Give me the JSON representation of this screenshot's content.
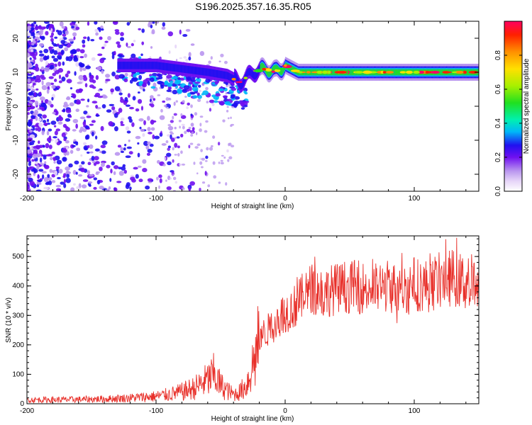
{
  "title": "S196.2025.357.16.35.R05",
  "chart_data": [
    {
      "type": "heatmap",
      "xlabel": "Height of straight line (km)",
      "ylabel": "Frequency (Hz)",
      "xlim": [
        -200,
        150
      ],
      "ylim": [
        -25,
        25
      ],
      "xticks": [
        -200,
        -100,
        0,
        100
      ],
      "xtick_labels": [
        "-200",
        "-100",
        "0",
        "100"
      ],
      "yticks": [
        -20,
        -10,
        0,
        10,
        20
      ],
      "ytick_labels": [
        "-20",
        "-10",
        "0",
        "10",
        "20"
      ],
      "ridge": {
        "description_points_x": [
          -130,
          -100,
          -80,
          -60,
          -45,
          -35,
          -25,
          -15,
          -8,
          0,
          10,
          20,
          40,
          60,
          80,
          100,
          120,
          150
        ],
        "description_points_y": [
          12,
          12,
          11,
          10,
          9,
          7,
          10,
          11,
          10,
          12,
          10,
          10,
          10,
          10,
          10,
          10,
          10,
          10
        ]
      },
      "colorbar": {
        "label": "Normalized spectral amplitude",
        "range": [
          0.0,
          1.0
        ],
        "ticks": [
          0.0,
          0.2,
          0.4,
          0.6,
          0.8
        ],
        "tick_labels": [
          "0.0",
          "0.2",
          "0.4",
          "0.6",
          "0.8"
        ]
      }
    },
    {
      "type": "line",
      "xlabel": "Height of straight line (km)",
      "ylabel": "SNR (10 * v/v)",
      "xlim": [
        -200,
        150
      ],
      "ylim": [
        0,
        570
      ],
      "xticks": [
        -200,
        -100,
        0,
        100
      ],
      "xtick_labels": [
        "-200",
        "-100",
        "0",
        "100"
      ],
      "yticks": [
        0,
        100,
        200,
        300,
        400,
        500
      ],
      "ytick_labels": [
        "0",
        "100",
        "200",
        "300",
        "400",
        "500"
      ],
      "series": [
        {
          "name": "SNR",
          "color": "#e8302a",
          "x": [
            -200,
            -180,
            -160,
            -140,
            -120,
            -100,
            -90,
            -80,
            -70,
            -60,
            -55,
            -50,
            -45,
            -40,
            -35,
            -30,
            -25,
            -20,
            -15,
            -10,
            -5,
            0,
            5,
            10,
            15,
            20,
            30,
            40,
            50,
            60,
            70,
            80,
            90,
            100,
            110,
            120,
            130,
            140,
            150
          ],
          "values": [
            15,
            15,
            16,
            18,
            22,
            28,
            35,
            45,
            60,
            90,
            110,
            70,
            50,
            35,
            45,
            70,
            150,
            230,
            250,
            270,
            300,
            320,
            330,
            350,
            380,
            400,
            390,
            400,
            410,
            405,
            400,
            410,
            395,
            420,
            410,
            430,
            440,
            420,
            410
          ]
        }
      ]
    }
  ]
}
